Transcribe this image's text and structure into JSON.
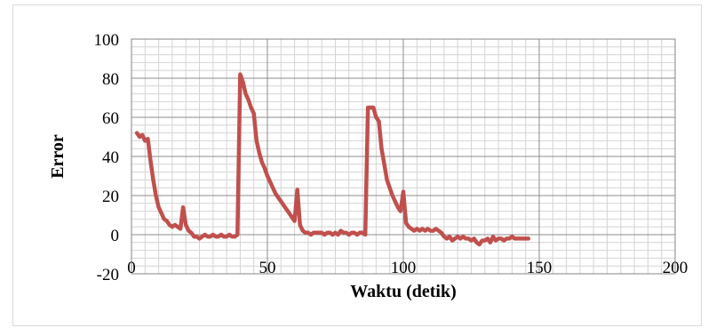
{
  "chart_data": {
    "type": "line",
    "title": "",
    "xlabel": "Waktu (detik)",
    "ylabel": "Error",
    "xlim": [
      0,
      200
    ],
    "ylim": [
      -20,
      100
    ],
    "x_ticks": [
      0,
      50,
      100,
      150,
      200
    ],
    "y_ticks": [
      -20,
      0,
      20,
      40,
      60,
      80,
      100
    ],
    "x_minor_step": 5,
    "y_minor_step": 4,
    "grid": true,
    "legend": "none",
    "series": [
      {
        "color": "#c0504d",
        "points": [
          [
            2,
            52
          ],
          [
            3,
            50
          ],
          [
            4,
            51
          ],
          [
            5,
            48
          ],
          [
            6,
            49
          ],
          [
            7,
            38
          ],
          [
            8,
            28
          ],
          [
            9,
            20
          ],
          [
            10,
            14
          ],
          [
            11,
            11
          ],
          [
            12,
            8
          ],
          [
            13,
            7
          ],
          [
            14,
            5
          ],
          [
            15,
            4
          ],
          [
            16,
            5
          ],
          [
            17,
            4
          ],
          [
            18,
            3
          ],
          [
            19,
            14
          ],
          [
            20,
            5
          ],
          [
            21,
            2
          ],
          [
            22,
            1
          ],
          [
            23,
            -1
          ],
          [
            24,
            -1
          ],
          [
            25,
            -2
          ],
          [
            26,
            -1
          ],
          [
            27,
            0
          ],
          [
            28,
            -1
          ],
          [
            29,
            -1
          ],
          [
            30,
            0
          ],
          [
            31,
            -1
          ],
          [
            32,
            -1
          ],
          [
            33,
            0
          ],
          [
            34,
            -1
          ],
          [
            35,
            -1
          ],
          [
            36,
            0
          ],
          [
            37,
            -1
          ],
          [
            38,
            -1
          ],
          [
            39,
            0
          ],
          [
            40,
            82
          ],
          [
            41,
            78
          ],
          [
            42,
            72
          ],
          [
            43,
            69
          ],
          [
            44,
            65
          ],
          [
            45,
            62
          ],
          [
            46,
            48
          ],
          [
            47,
            42
          ],
          [
            48,
            37
          ],
          [
            49,
            34
          ],
          [
            50,
            30
          ],
          [
            51,
            27
          ],
          [
            52,
            24
          ],
          [
            53,
            21
          ],
          [
            54,
            19
          ],
          [
            55,
            17
          ],
          [
            56,
            15
          ],
          [
            57,
            13
          ],
          [
            58,
            11
          ],
          [
            59,
            9
          ],
          [
            60,
            7
          ],
          [
            61,
            23
          ],
          [
            62,
            5
          ],
          [
            63,
            2
          ],
          [
            64,
            1
          ],
          [
            65,
            1
          ],
          [
            66,
            0
          ],
          [
            67,
            1
          ],
          [
            68,
            1
          ],
          [
            69,
            1
          ],
          [
            70,
            1
          ],
          [
            71,
            0
          ],
          [
            72,
            1
          ],
          [
            73,
            1
          ],
          [
            74,
            0
          ],
          [
            75,
            1
          ],
          [
            76,
            0
          ],
          [
            77,
            2
          ],
          [
            78,
            1
          ],
          [
            79,
            1
          ],
          [
            80,
            0
          ],
          [
            81,
            1
          ],
          [
            82,
            1
          ],
          [
            83,
            0
          ],
          [
            84,
            1
          ],
          [
            85,
            1
          ],
          [
            86,
            0
          ],
          [
            87,
            65
          ],
          [
            88,
            65
          ],
          [
            89,
            65
          ],
          [
            90,
            60
          ],
          [
            91,
            58
          ],
          [
            92,
            44
          ],
          [
            93,
            36
          ],
          [
            94,
            28
          ],
          [
            95,
            24
          ],
          [
            96,
            20
          ],
          [
            97,
            17
          ],
          [
            98,
            14
          ],
          [
            99,
            12
          ],
          [
            100,
            22
          ],
          [
            101,
            6
          ],
          [
            102,
            4
          ],
          [
            103,
            3
          ],
          [
            104,
            2
          ],
          [
            105,
            3
          ],
          [
            106,
            2
          ],
          [
            107,
            3
          ],
          [
            108,
            2
          ],
          [
            109,
            3
          ],
          [
            110,
            2
          ],
          [
            111,
            2
          ],
          [
            112,
            3
          ],
          [
            113,
            2
          ],
          [
            114,
            1
          ],
          [
            115,
            -1
          ],
          [
            116,
            -2
          ],
          [
            117,
            -1
          ],
          [
            118,
            -3
          ],
          [
            119,
            -2
          ],
          [
            120,
            -1
          ],
          [
            121,
            -2
          ],
          [
            122,
            -1
          ],
          [
            123,
            -2
          ],
          [
            124,
            -2
          ],
          [
            125,
            -3
          ],
          [
            126,
            -2
          ],
          [
            127,
            -4
          ],
          [
            128,
            -5
          ],
          [
            129,
            -3
          ],
          [
            130,
            -3
          ],
          [
            131,
            -2
          ],
          [
            132,
            -4
          ],
          [
            133,
            -1
          ],
          [
            134,
            -3
          ],
          [
            135,
            -2
          ],
          [
            136,
            -2
          ],
          [
            137,
            -3
          ],
          [
            138,
            -2
          ],
          [
            139,
            -2
          ],
          [
            140,
            -1
          ],
          [
            141,
            -2
          ],
          [
            142,
            -2
          ],
          [
            143,
            -2
          ],
          [
            144,
            -2
          ],
          [
            145,
            -2
          ],
          [
            146,
            -2
          ]
        ]
      }
    ]
  }
}
